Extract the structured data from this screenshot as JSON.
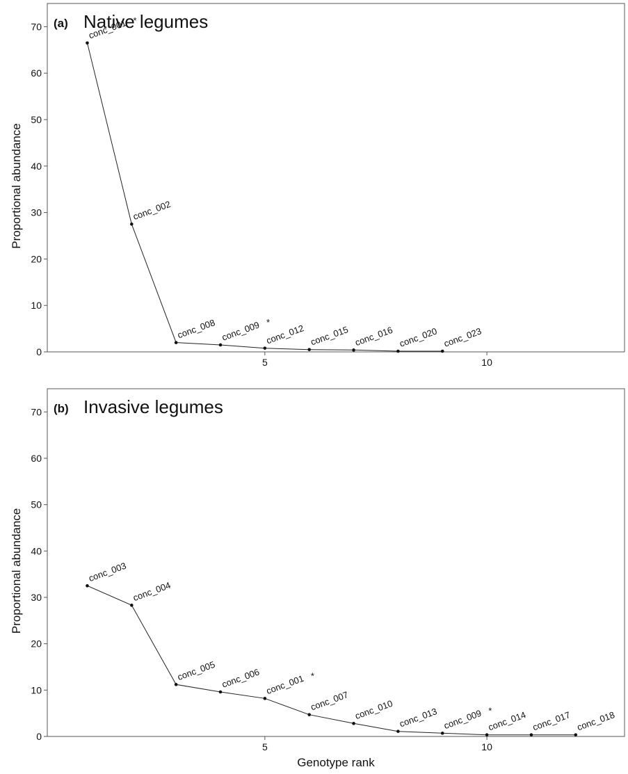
{
  "figure": {
    "xlabel": "Genotype rank"
  },
  "chart_data": [
    {
      "type": "line",
      "panel_letter": "(a)",
      "title": "Native legumes",
      "xlabel": "",
      "ylabel": "Proportional abundance",
      "xlim": [
        0.1,
        13.1
      ],
      "ylim": [
        0,
        75
      ],
      "x_ticks": [
        5,
        10
      ],
      "y_ticks": [
        0,
        10,
        20,
        30,
        40,
        50,
        60,
        70
      ],
      "grid": false,
      "x": [
        1,
        2,
        3,
        4,
        5,
        6,
        7,
        8,
        9
      ],
      "values": [
        66.5,
        27.5,
        2.0,
        1.5,
        0.8,
        0.5,
        0.4,
        0.15,
        0.15
      ],
      "point_labels": [
        "conc_001",
        "conc_002",
        "conc_008",
        "conc_009",
        "conc_012",
        "conc_015",
        "conc_016",
        "conc_020",
        "conc_023"
      ],
      "asterisk": [
        true,
        false,
        false,
        true,
        false,
        false,
        false,
        false,
        false
      ]
    },
    {
      "type": "line",
      "panel_letter": "(b)",
      "title": "Invasive legumes",
      "xlabel": "Genotype rank",
      "ylabel": "Proportional abundance",
      "xlim": [
        0.1,
        13.1
      ],
      "ylim": [
        0,
        75
      ],
      "x_ticks": [
        5,
        10
      ],
      "y_ticks": [
        0,
        10,
        20,
        30,
        40,
        50,
        60,
        70
      ],
      "grid": false,
      "x": [
        1,
        2,
        3,
        4,
        5,
        6,
        7,
        8,
        9,
        10,
        11,
        12
      ],
      "values": [
        32.5,
        28.3,
        11.2,
        9.6,
        8.2,
        4.7,
        2.8,
        1.1,
        0.7,
        0.35,
        0.35,
        0.35
      ],
      "point_labels": [
        "conc_003",
        "conc_004",
        "conc_005",
        "conc_006",
        "conc_001",
        "conc_007",
        "conc_010",
        "conc_013",
        "conc_009",
        "conc_014",
        "conc_017",
        "conc_018"
      ],
      "asterisk": [
        false,
        false,
        false,
        false,
        true,
        false,
        false,
        false,
        true,
        false,
        false,
        false
      ]
    }
  ]
}
